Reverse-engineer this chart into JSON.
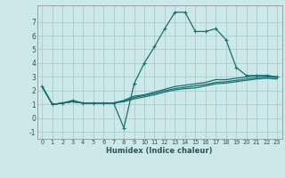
{
  "xlabel": "Humidex (Indice chaleur)",
  "background_color": "#cce8e8",
  "grid_color": "#aacccc",
  "line_color": "#1a7070",
  "xlim": [
    -0.5,
    23.5
  ],
  "ylim": [
    -1.5,
    8.2
  ],
  "yticks": [
    -1,
    0,
    1,
    2,
    3,
    4,
    5,
    6,
    7
  ],
  "xticks": [
    0,
    1,
    2,
    3,
    4,
    5,
    6,
    7,
    8,
    9,
    10,
    11,
    12,
    13,
    14,
    15,
    16,
    17,
    18,
    19,
    20,
    21,
    22,
    23
  ],
  "series": [
    {
      "x": [
        0,
        1,
        2,
        3,
        4,
        5,
        6,
        7,
        8,
        9,
        10,
        11,
        12,
        13,
        14,
        15,
        16,
        17,
        18,
        19,
        20,
        21,
        22,
        23
      ],
      "y": [
        2.3,
        1.0,
        1.1,
        1.3,
        1.1,
        1.1,
        1.1,
        1.1,
        -0.7,
        2.5,
        4.0,
        5.2,
        6.5,
        7.7,
        7.7,
        6.3,
        6.3,
        6.5,
        5.7,
        3.7,
        3.1,
        3.1,
        3.1,
        3.0
      ],
      "marker": "+"
    },
    {
      "x": [
        0,
        1,
        2,
        3,
        4,
        5,
        6,
        7,
        8,
        9,
        10,
        11,
        12,
        13,
        14,
        15,
        16,
        17,
        18,
        19,
        20,
        21,
        22,
        23
      ],
      "y": [
        2.3,
        1.0,
        1.1,
        1.2,
        1.1,
        1.1,
        1.1,
        1.1,
        1.3,
        1.6,
        1.7,
        1.9,
        2.1,
        2.3,
        2.4,
        2.5,
        2.6,
        2.8,
        2.8,
        2.9,
        3.0,
        3.1,
        3.1,
        3.0
      ],
      "marker": null
    },
    {
      "x": [
        0,
        1,
        2,
        3,
        4,
        5,
        6,
        7,
        8,
        9,
        10,
        11,
        12,
        13,
        14,
        15,
        16,
        17,
        18,
        19,
        20,
        21,
        22,
        23
      ],
      "y": [
        2.3,
        1.0,
        1.1,
        1.2,
        1.1,
        1.1,
        1.1,
        1.1,
        1.25,
        1.5,
        1.65,
        1.8,
        2.0,
        2.15,
        2.25,
        2.35,
        2.45,
        2.6,
        2.65,
        2.75,
        2.85,
        2.95,
        3.0,
        2.95
      ],
      "marker": null
    },
    {
      "x": [
        0,
        1,
        2,
        3,
        4,
        5,
        6,
        7,
        8,
        9,
        10,
        11,
        12,
        13,
        14,
        15,
        16,
        17,
        18,
        19,
        20,
        21,
        22,
        23
      ],
      "y": [
        2.3,
        1.0,
        1.1,
        1.2,
        1.1,
        1.1,
        1.1,
        1.1,
        1.2,
        1.4,
        1.55,
        1.7,
        1.9,
        2.05,
        2.15,
        2.2,
        2.35,
        2.5,
        2.55,
        2.65,
        2.75,
        2.85,
        2.9,
        2.85
      ],
      "marker": null
    }
  ],
  "font_color": "#2a5555"
}
